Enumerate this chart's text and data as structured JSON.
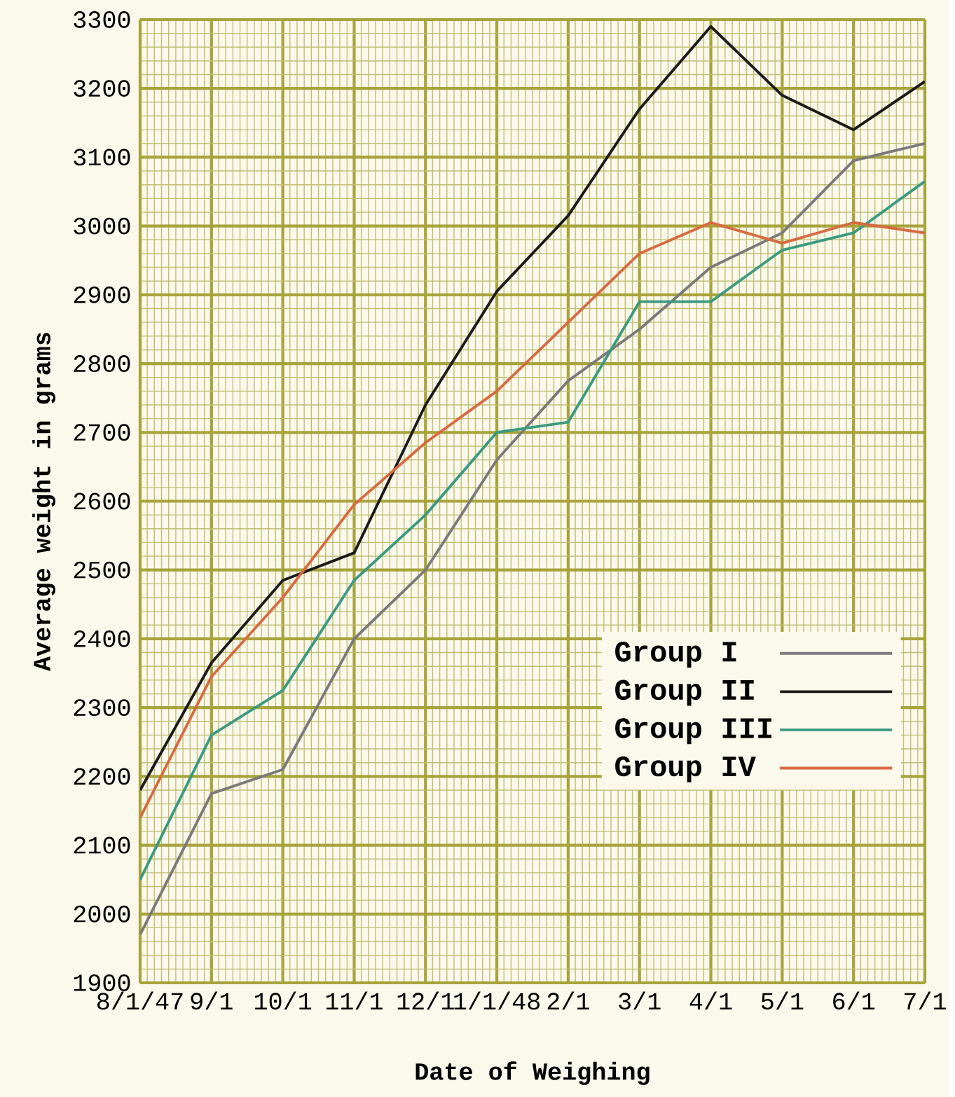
{
  "chart_data": {
    "type": "line",
    "xlabel": "Date of Weighing",
    "ylabel": "Average weight in grams",
    "categories": [
      "8/1/47",
      "9/1",
      "10/1",
      "11/1",
      "12/1",
      "1/1/48",
      "2/1",
      "3/1",
      "4/1",
      "5/1",
      "6/1",
      "7/1"
    ],
    "series": [
      {
        "name": "Group    I",
        "color": "#7a7a7a",
        "values": [
          1970,
          2175,
          2210,
          2400,
          2500,
          2660,
          2775,
          2850,
          2940,
          2990,
          3095,
          3120
        ]
      },
      {
        "name": "Group   II",
        "color": "#1a1a1a",
        "values": [
          2180,
          2365,
          2485,
          2525,
          2740,
          2905,
          3015,
          3170,
          3290,
          3190,
          3140,
          3210
        ]
      },
      {
        "name": "Group III",
        "color": "#3a9a80",
        "values": [
          2050,
          2260,
          2325,
          2485,
          2580,
          2700,
          2715,
          2890,
          2890,
          2965,
          2990,
          3065
        ]
      },
      {
        "name": "Group   IV",
        "color": "#d86a40",
        "values": [
          2140,
          2345,
          2460,
          2595,
          2685,
          2760,
          2860,
          2960,
          3005,
          2975,
          3005,
          2990
        ]
      }
    ],
    "ylim": [
      1900,
      3300
    ],
    "yticks": [
      1900,
      2000,
      2100,
      2200,
      2300,
      2400,
      2500,
      2600,
      2700,
      2800,
      2900,
      3000,
      3100,
      3200,
      3300
    ],
    "grid": true,
    "legend": "bottom right",
    "marker": "none",
    "line_style": "solid"
  }
}
